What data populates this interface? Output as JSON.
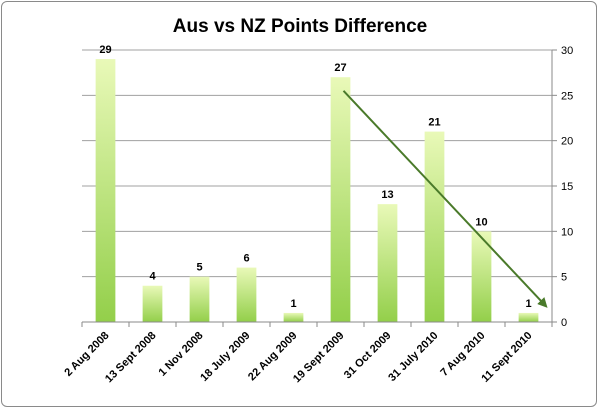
{
  "chart_data": {
    "type": "bar",
    "title": "Aus vs NZ Points Difference",
    "xlabel": "",
    "ylabel": "",
    "categories": [
      "2 Aug 2008",
      "13 Sept 2008",
      "1 Nov 2008",
      "18 July 2009",
      "22 Aug 2009",
      "19 Sept 2009",
      "31 Oct 2009",
      "31 July 2010",
      "7 Aug 2010",
      "11 Sept 2010"
    ],
    "values": [
      29,
      4,
      5,
      6,
      1,
      27,
      13,
      21,
      10,
      1
    ],
    "ylim": [
      0,
      30
    ],
    "yticks": [
      0,
      5,
      10,
      15,
      20,
      25,
      30
    ],
    "y_axis_side": "right",
    "grid": true,
    "legend": "none",
    "bar_color_top": "#e9f9b8",
    "bar_color_bottom": "#93cf4a",
    "trend_arrow": {
      "from_category_index": 5,
      "from_value": 25.5,
      "to_category_index": 9,
      "to_value": 1.8,
      "color": "#4a7a2a"
    }
  }
}
